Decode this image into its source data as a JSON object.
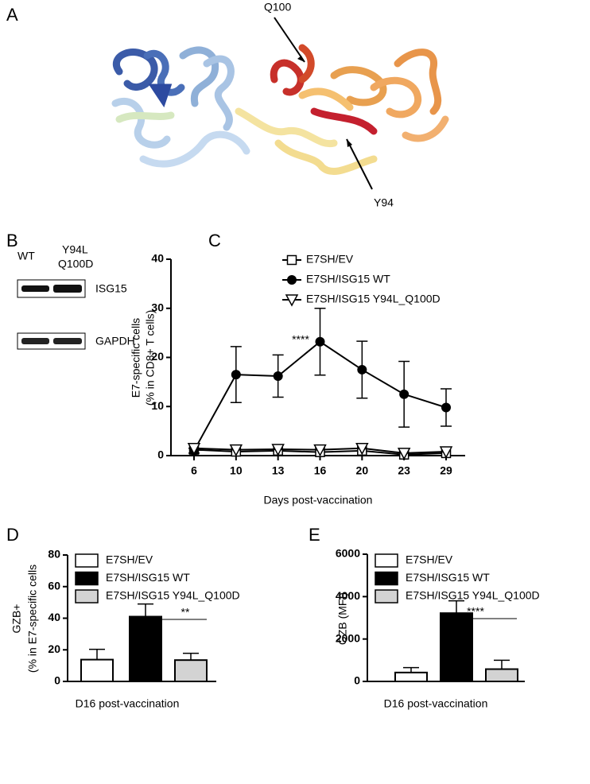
{
  "panel_labels": [
    "A",
    "B",
    "C",
    "D",
    "E"
  ],
  "panel_a": {
    "labels": [
      "Q100",
      "Y94"
    ]
  },
  "panel_b": {
    "lanes": [
      [
        "WT"
      ],
      [
        "Y94L",
        "Q100D"
      ]
    ],
    "bands": [
      "ISG15",
      "GAPDH"
    ]
  },
  "chart_data": [
    {
      "type": "line",
      "y_label": [
        "E7-specific cells",
        "(% in CD8+ T cells)"
      ],
      "x_label": "Days post-vaccination",
      "categories": [
        "6",
        "10",
        "13",
        "16",
        "20",
        "23",
        "29"
      ],
      "ylim": [
        0,
        40
      ],
      "yticks": [
        0,
        10,
        20,
        30,
        40
      ],
      "annotation": "****",
      "series": [
        {
          "name": "E7SH/EV",
          "marker": "square",
          "color": "#000000",
          "values": [
            1.2,
            0.8,
            1.0,
            0.7,
            1.0,
            0.2,
            0.5
          ]
        },
        {
          "name": "E7SH/ISG15 WT",
          "marker": "circle",
          "color": "#000000",
          "values": [
            1.0,
            16.5,
            16.2,
            23.2,
            17.5,
            12.5,
            9.8
          ],
          "errors": [
            0.5,
            5.7,
            4.3,
            6.8,
            5.8,
            6.7,
            3.8
          ]
        },
        {
          "name": "E7SH/ISG15 Y94L_Q100D",
          "marker": "triangle-down",
          "color": "#000000",
          "values": [
            1.5,
            1.2,
            1.3,
            1.2,
            1.5,
            0.5,
            0.8
          ]
        }
      ]
    },
    {
      "type": "bar",
      "y_label": [
        "GZB+",
        "(% in E7-specific cells"
      ],
      "x_label": "D16 post-vaccination",
      "ylim": [
        0,
        80
      ],
      "yticks": [
        0,
        20,
        40,
        60,
        80
      ],
      "annotation": "**",
      "series": [
        {
          "name": "E7SH/EV",
          "color": "#ffffff",
          "values": [
            13.8
          ],
          "errors": [
            6.5
          ]
        },
        {
          "name": "E7SH/ISG15 WT",
          "color": "#000000",
          "values": [
            41
          ],
          "errors": [
            8
          ]
        },
        {
          "name": "E7SH/ISG15 Y94L_Q100D",
          "color": "#d3d3d3",
          "values": [
            13.5
          ],
          "errors": [
            4.3
          ]
        }
      ]
    },
    {
      "type": "bar",
      "y_label": [
        "GZB (MFI)"
      ],
      "x_label": "D16 post-vaccination",
      "ylim": [
        0,
        6000
      ],
      "yticks": [
        0,
        2000,
        4000,
        6000
      ],
      "annotation": "****",
      "series": [
        {
          "name": "E7SH/EV",
          "color": "#ffffff",
          "values": [
            420
          ],
          "errors": [
            230
          ]
        },
        {
          "name": "E7SH/ISG15 WT",
          "color": "#000000",
          "values": [
            3220
          ],
          "errors": [
            580
          ]
        },
        {
          "name": "E7SH/ISG15 Y94L_Q100D",
          "color": "#d3d3d3",
          "values": [
            580
          ],
          "errors": [
            420
          ]
        }
      ]
    }
  ]
}
